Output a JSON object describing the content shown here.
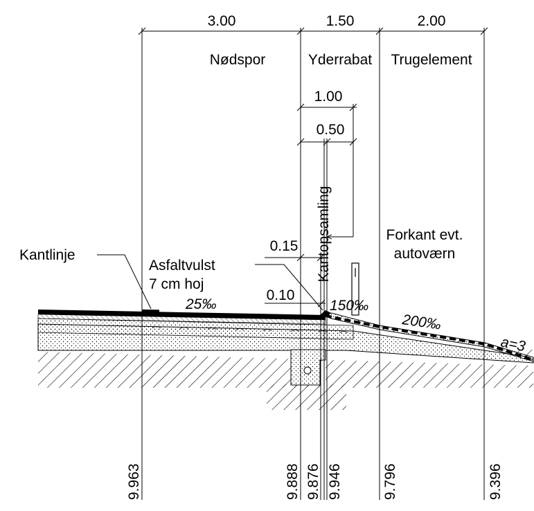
{
  "dimensions": {
    "widths": [
      "3.00",
      "1.50",
      "2.00"
    ],
    "kantopsamling_width": "1.00",
    "half_width": "0.50",
    "vulst_offset": "0.15",
    "vulst_height": "0.10"
  },
  "zones": {
    "nodspor": "Nødspor",
    "yderrabat": "Yderrabat",
    "trugelement": "Trugelement"
  },
  "labels": {
    "kantopsamling": "Kantopsamling",
    "forkant_line1": "Forkant evt.",
    "forkant_line2": "autoværn",
    "kantlinje": "Kantlinje",
    "asfaltvulst_line1": "Asfaltvulst",
    "asfaltvulst_line2": "7 cm hoj"
  },
  "slopes": {
    "s1": "25‰",
    "s2": "150‰",
    "s3": "200‰",
    "embankment": "a=3"
  },
  "elevations": [
    "9.963",
    "9.888",
    "9.876",
    "9.946",
    "9.796",
    "9.396"
  ]
}
